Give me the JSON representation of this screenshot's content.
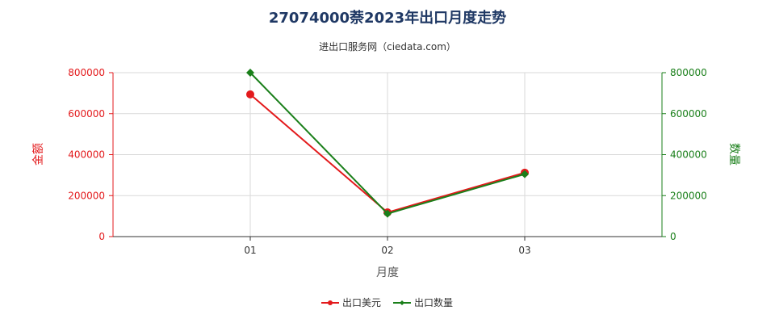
{
  "chart_data": {
    "type": "line",
    "title": "27074000萘2023年出口月度走势",
    "subtitle": "进出口服务网（ciedata.com）",
    "categories": [
      "01",
      "02",
      "03"
    ],
    "xlabel": "月度",
    "ylabel_left": "金额",
    "ylabel_right": "数量",
    "ylim": [
      0,
      800000
    ],
    "y_ticks": [
      "0",
      "200000",
      "400000",
      "600000",
      "800000"
    ],
    "series": [
      {
        "name": "出口美元",
        "axis": "left",
        "color": "#e31a1c",
        "marker": "circle",
        "values": [
          694000,
          118000,
          312000
        ]
      },
      {
        "name": "出口数量",
        "axis": "right",
        "color": "#1a7f1a",
        "marker": "diamond",
        "values": [
          800000,
          112000,
          305000
        ]
      }
    ],
    "grid": true,
    "legend": "bottom-center",
    "left_axis_color": "#e31a1c",
    "right_axis_color": "#1a7f1a"
  }
}
